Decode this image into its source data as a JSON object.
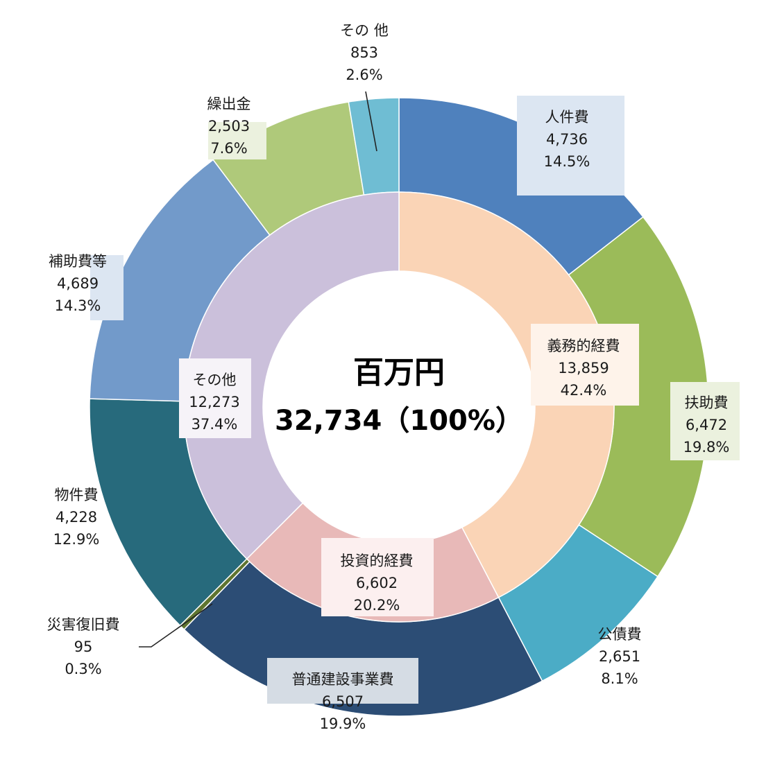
{
  "chart_data": {
    "type": "pie",
    "subtype": "nested-donut",
    "start_angle": "12 o'clock",
    "direction": "clockwise",
    "center": {
      "title": "百万円",
      "total_text": "32,734（100%）",
      "total_value": 32734
    },
    "inner_ring": [
      {
        "name": "義務的経費",
        "value_text": "13,859",
        "value": 13859,
        "percent_text": "42.4%",
        "percent": 42.4,
        "color": "#FAD4B6",
        "label_bg": "#FEF3EA"
      },
      {
        "name": "投資的経費",
        "value_text": "6,602",
        "value": 6602,
        "percent_text": "20.2%",
        "percent": 20.2,
        "color": "#E8B9B8",
        "label_bg": "#FCEFEF"
      },
      {
        "name": "その他",
        "value_text": "12,273",
        "value": 12273,
        "percent_text": "37.4%",
        "percent": 37.4,
        "color": "#CBC0DB",
        "label_bg": "#F6F3F8"
      }
    ],
    "outer_ring": [
      {
        "name": "人件費",
        "value_text": "4,736",
        "value": 4736,
        "percent_text": "14.5%",
        "percent": 14.5,
        "color": "#4F81BD",
        "label_bg": "#DCE6F2"
      },
      {
        "name": "扶助費",
        "value_text": "6,472",
        "value": 6472,
        "percent_text": "19.8%",
        "percent": 19.8,
        "color": "#9BBB59",
        "label_bg": "#EBF1DE"
      },
      {
        "name": "公債費",
        "value_text": "2,651",
        "value": 2651,
        "percent_text": "8.1%",
        "percent": 8.1,
        "color": "#4BACC6",
        "label_bg": "#DBEEF4"
      },
      {
        "name": "普通建設事業費",
        "value_text": "6,507",
        "value": 6507,
        "percent_text": "19.9%",
        "percent": 19.9,
        "color": "#2C4D75",
        "label_bg": "#D5DCE4"
      },
      {
        "name": "災害復旧費",
        "value_text": "95",
        "value": 95,
        "percent_text": "0.3%",
        "percent": 0.3,
        "color": "#5F7530",
        "label_bg": null
      },
      {
        "name": "物件費",
        "value_text": "4,228",
        "value": 4228,
        "percent_text": "12.9%",
        "percent": 12.9,
        "color": "#276A7C",
        "label_bg": null
      },
      {
        "name": "補助費等",
        "value_text": "4,689",
        "value": 4689,
        "percent_text": "14.3%",
        "percent": 14.3,
        "color": "#729ACA",
        "label_bg": "#DCE6F2"
      },
      {
        "name": "繰出金",
        "value_text": "2,503",
        "value": 2503,
        "percent_text": "7.6%",
        "percent": 7.6,
        "color": "#AFC97A",
        "label_bg": "#EBF1DE"
      },
      {
        "name": "その 他",
        "value_text": "853",
        "value": 853,
        "percent_text": "2.6%",
        "percent": 2.6,
        "color": "#6FBDD3",
        "label_bg": null
      }
    ]
  }
}
